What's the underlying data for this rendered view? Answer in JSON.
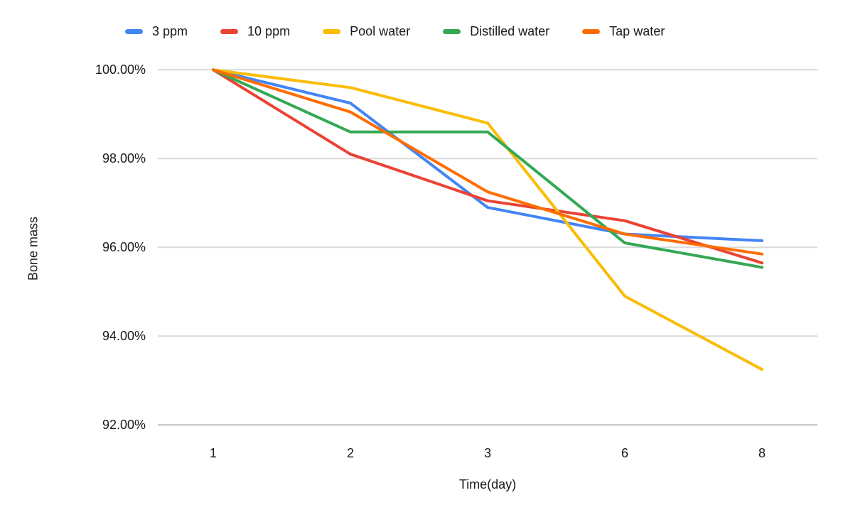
{
  "chart_data": {
    "type": "line",
    "title": "",
    "xlabel": "Time(day)",
    "ylabel": "Bone mass",
    "units": "%",
    "categories": [
      "1",
      "2",
      "3",
      "6",
      "8"
    ],
    "y_ticks": [
      {
        "label": "100.00%",
        "value": 100
      },
      {
        "label": "98.00%",
        "value": 98
      },
      {
        "label": "96.00%",
        "value": 96
      },
      {
        "label": "94.00%",
        "value": 94
      },
      {
        "label": "92.00%",
        "value": 92
      }
    ],
    "ylim": [
      92,
      100
    ],
    "grid": true,
    "legend_position": "top",
    "series": [
      {
        "name": "3 ppm",
        "color": "#4285F4",
        "values": [
          100,
          99.25,
          96.9,
          96.3,
          96.15
        ]
      },
      {
        "name": "10 ppm",
        "color": "#EA4335",
        "values": [
          100,
          98.1,
          97.05,
          96.6,
          95.65
        ]
      },
      {
        "name": "Pool water",
        "color": "#FBBC04",
        "values": [
          100,
          99.6,
          98.8,
          94.9,
          93.25
        ]
      },
      {
        "name": "Distilled water",
        "color": "#34A853",
        "values": [
          100,
          98.6,
          98.6,
          96.1,
          95.55
        ]
      },
      {
        "name": "Tap water",
        "color": "#FF6D01",
        "values": [
          100,
          99.05,
          97.25,
          96.3,
          95.85
        ]
      }
    ],
    "colors": {
      "gridline": "#d9d9d9",
      "baseline": "#bdbdbd",
      "text": "#1a1a1a",
      "background": "#ffffff"
    }
  }
}
